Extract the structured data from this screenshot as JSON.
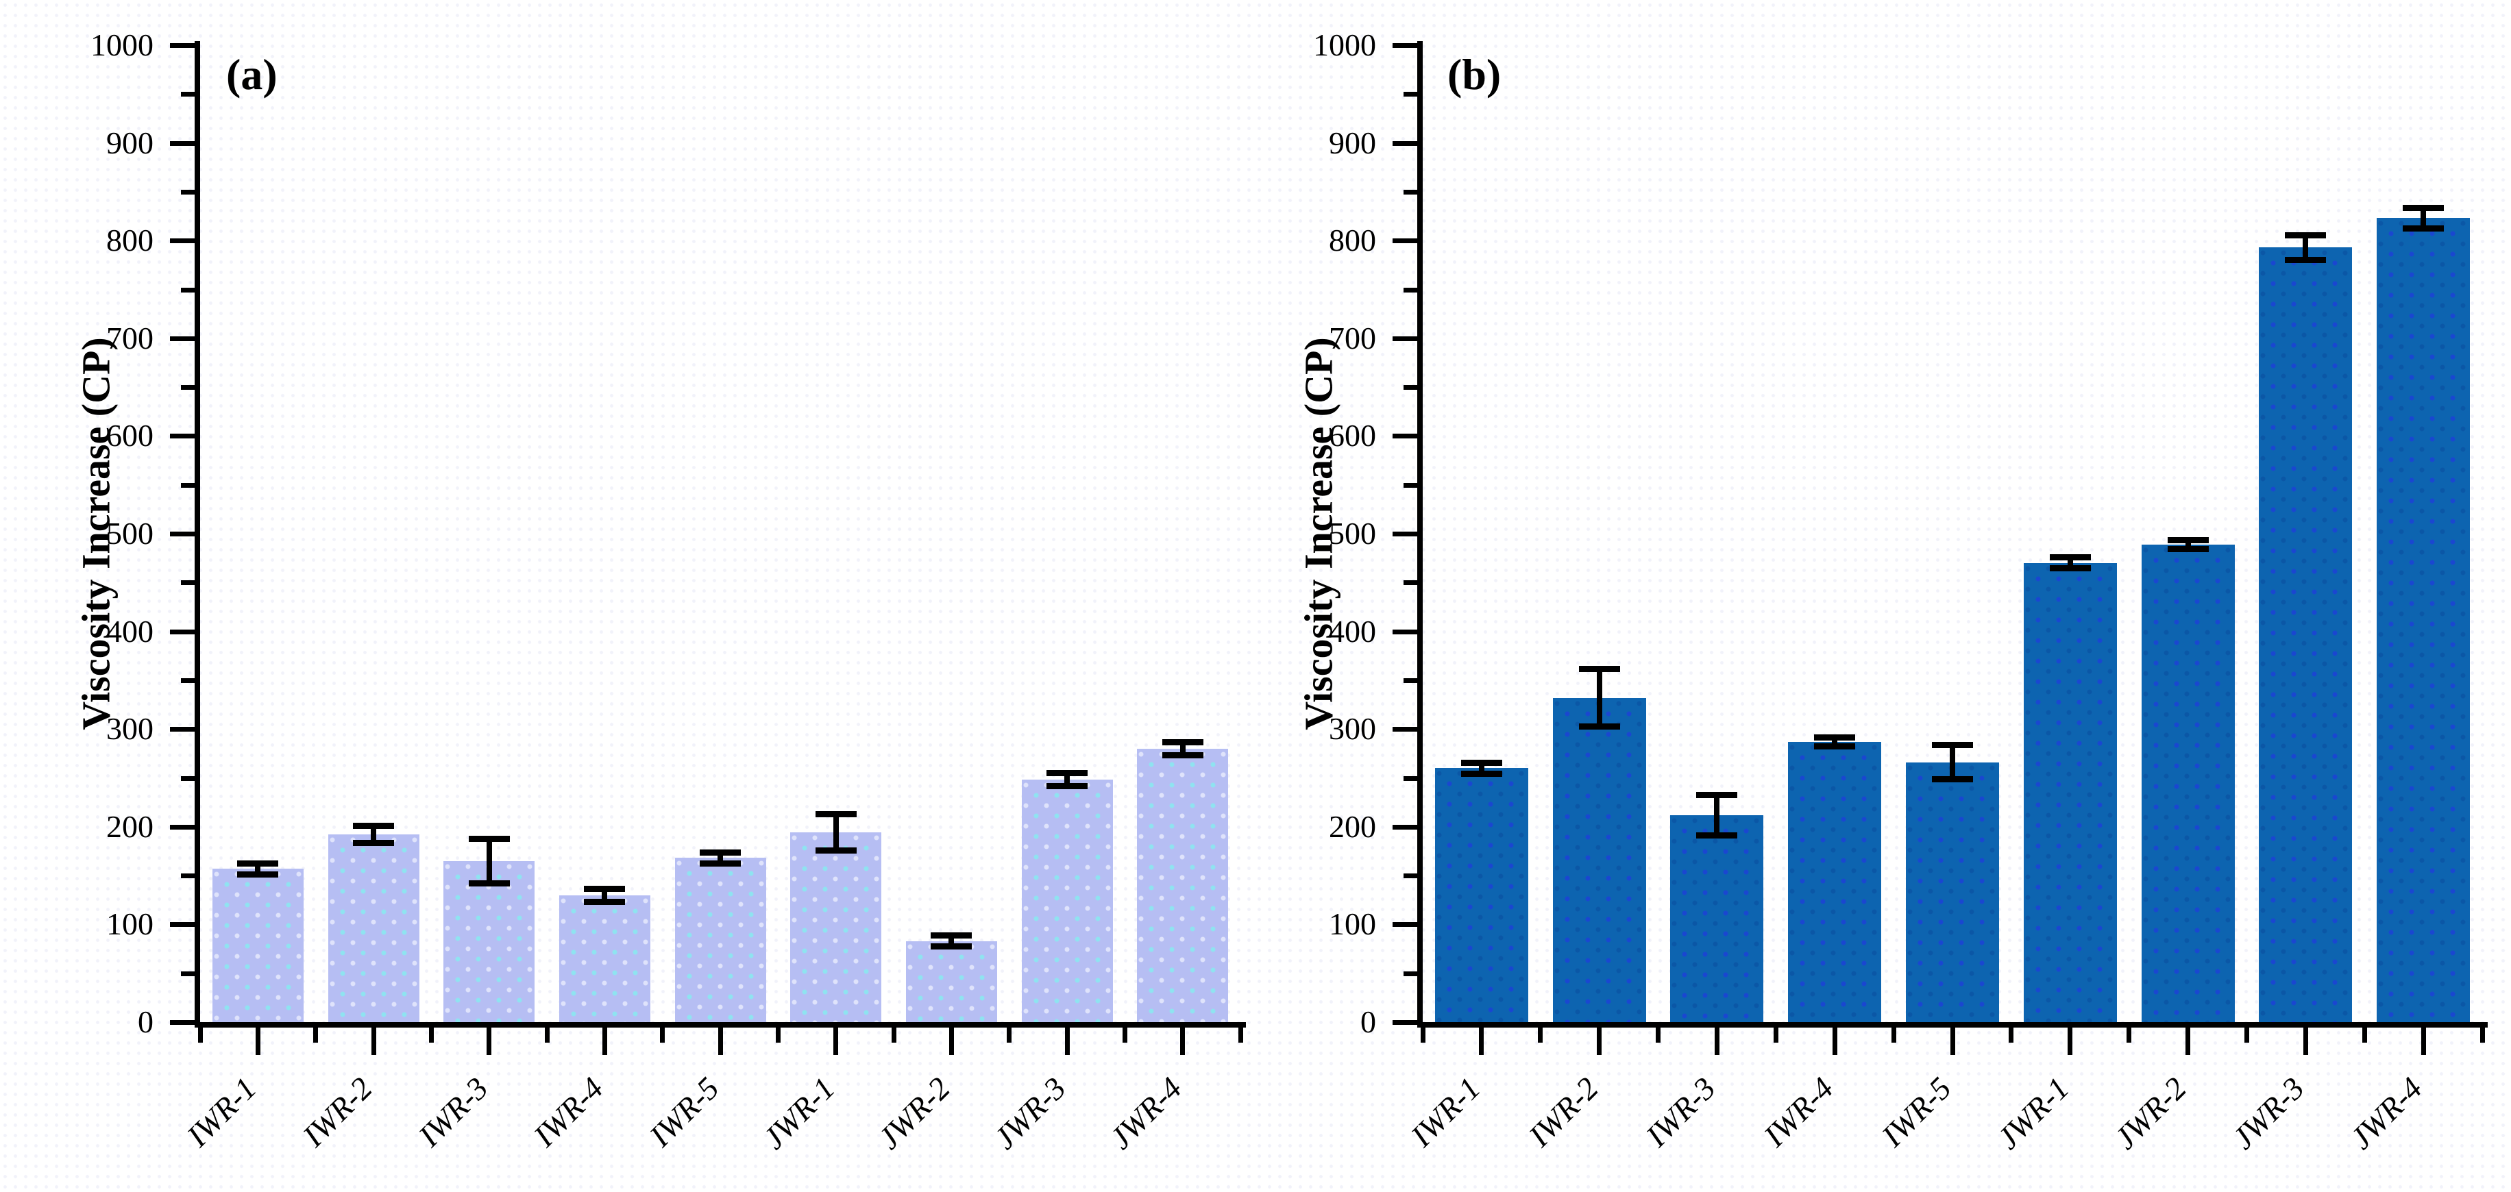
{
  "figure": {
    "description": "Two-panel bar chart of viscosity increase for IWR and JWR samples",
    "panels": [
      {
        "label": "(a)"
      },
      {
        "label": "(b)"
      }
    ]
  },
  "chart_data": [
    {
      "type": "bar",
      "panel_label": "(a)",
      "title": "",
      "xlabel": "",
      "ylabel": "Viscosity Increase (CP)",
      "ylim": [
        0,
        1000
      ],
      "ytick_step": 100,
      "grid": false,
      "legend": "none",
      "categories": [
        "IWR-1",
        "IWR-2",
        "IWR-3",
        "IWR-4",
        "IWR-5",
        "JWR-1",
        "JWR-2",
        "JWR-3",
        "JWR-4"
      ],
      "values": [
        157,
        192,
        165,
        130,
        168,
        194,
        83,
        248,
        280
      ],
      "errors": [
        6,
        9,
        23,
        7,
        6,
        19,
        6,
        7,
        7
      ],
      "bar_color": "#b6bef3",
      "bar_dot_color": "#8fe3f0",
      "bar_dot_color2": "#dfe3fb",
      "axis_color": "#000000",
      "error_color": "#000000"
    },
    {
      "type": "bar",
      "panel_label": "(b)",
      "title": "",
      "xlabel": "",
      "ylabel": "Viscosity Increase (CP)",
      "ylim": [
        0,
        1000
      ],
      "ytick_step": 100,
      "grid": false,
      "legend": "none",
      "categories": [
        "IWR-1",
        "IWR-2",
        "IWR-3",
        "IWR-4",
        "IWR-5",
        "JWR-1",
        "JWR-2",
        "JWR-3",
        "JWR-4"
      ],
      "values": [
        260,
        332,
        212,
        287,
        266,
        470,
        489,
        793,
        823
      ],
      "errors": [
        6,
        30,
        21,
        5,
        18,
        6,
        5,
        13,
        11
      ],
      "bar_color": "#0d64b0",
      "bar_dot_color": "#1a47d0",
      "bar_dot_color2": "#0b57a6",
      "axis_color": "#000000",
      "error_color": "#000000"
    }
  ]
}
